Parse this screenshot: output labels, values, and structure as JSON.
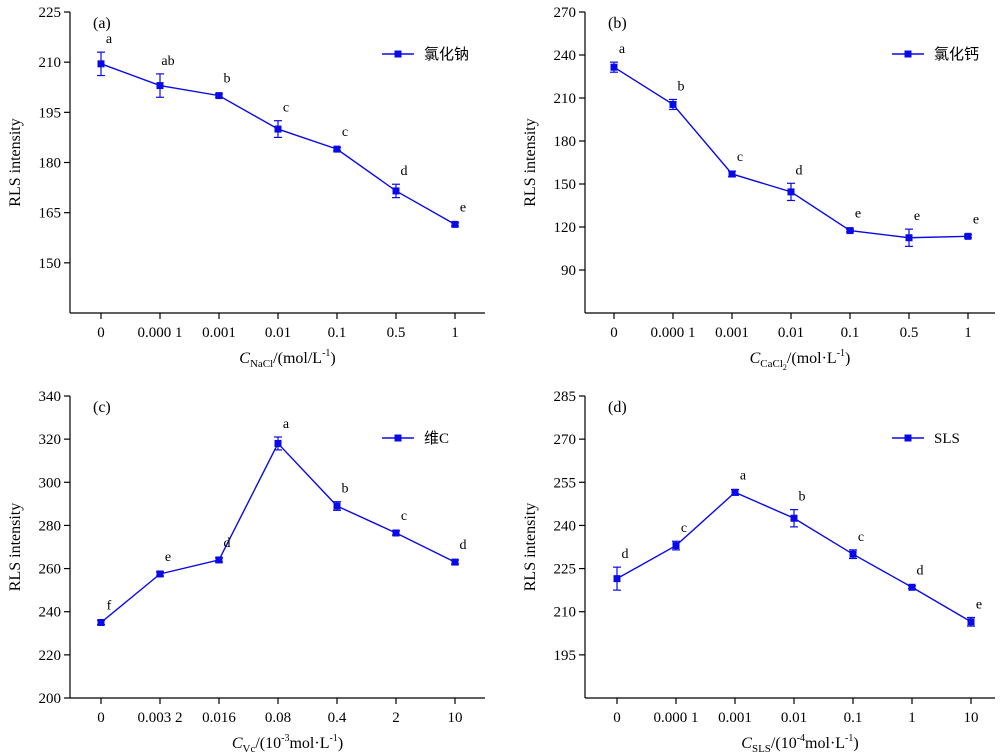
{
  "figure": {
    "accent_color": "#0a0ae6"
  },
  "chart_data": [
    {
      "type": "line",
      "panel_label": "(a)",
      "categories": [
        "0",
        "0.000 1",
        "0.001",
        "0.01",
        "0.1",
        "0.5",
        "1"
      ],
      "series": [
        {
          "name": "氯化钠",
          "values": [
            209.5,
            203,
            200,
            190,
            184,
            171.5,
            161.5
          ],
          "errors": [
            3.5,
            3.5,
            0.5,
            2.5,
            0.5,
            2,
            0.5
          ],
          "significance": [
            "a",
            "ab",
            "b",
            "c",
            "c",
            "d",
            "e"
          ]
        }
      ],
      "ylabel": "RLS intensity",
      "xlabel_var": "C",
      "xlabel_sub": "NaCl",
      "xlabel_sub2": "",
      "xlabel_unit": "/(mol/L",
      "xlabel_sup": "-1",
      "xlabel_end": ")",
      "ylim": [
        135,
        225
      ],
      "yticks": [
        150,
        165,
        180,
        195,
        210,
        225
      ],
      "legend_position": "top-right"
    },
    {
      "type": "line",
      "panel_label": "(b)",
      "categories": [
        "0",
        "0.000 1",
        "0.001",
        "0.01",
        "0.1",
        "0.5",
        "1"
      ],
      "series": [
        {
          "name": "氯化钙",
          "values": [
            231.5,
            205.5,
            157,
            144.5,
            117.5,
            112.5,
            113.5
          ],
          "errors": [
            3.5,
            3.5,
            2,
            6,
            1,
            6,
            1
          ],
          "significance": [
            "a",
            "b",
            "c",
            "d",
            "e",
            "e",
            "e"
          ]
        }
      ],
      "ylabel": "RLS intensity",
      "xlabel_var": "C",
      "xlabel_sub": "CaCl",
      "xlabel_sub2": "2",
      "xlabel_unit": "/(mol·L",
      "xlabel_sup": "-1",
      "xlabel_end": ")",
      "ylim": [
        60,
        270
      ],
      "yticks": [
        90,
        120,
        150,
        180,
        210,
        240,
        270
      ],
      "legend_position": "top-right"
    },
    {
      "type": "line",
      "panel_label": "(c)",
      "categories": [
        "0",
        "0.003 2",
        "0.016",
        "0.08",
        "0.4",
        "2",
        "10"
      ],
      "series": [
        {
          "name": "维C",
          "values": [
            235,
            257.5,
            264,
            318,
            289,
            276.5,
            263
          ],
          "errors": [
            1,
            1,
            1,
            3,
            2,
            1,
            1
          ],
          "significance": [
            "f",
            "e",
            "d",
            "a",
            "b",
            "c",
            "d"
          ]
        }
      ],
      "ylabel": "RLS intensity",
      "xlabel_var": "C",
      "xlabel_sub": "Vc",
      "xlabel_sub2": "",
      "xlabel_unit": "/(10",
      "xlabel_sup": "-3",
      "xlabel_unit2": "mol·L",
      "xlabel_sup2": "-1",
      "xlabel_end": ")",
      "ylim": [
        200,
        340
      ],
      "yticks": [
        200,
        220,
        240,
        260,
        280,
        300,
        320,
        340
      ],
      "legend_position": "top-right"
    },
    {
      "type": "line",
      "panel_label": "(d)",
      "categories": [
        "0",
        "0.000 1",
        "0.001",
        "0.01",
        "0.1",
        "1",
        "10"
      ],
      "series": [
        {
          "name": "SLS",
          "values": [
            221.5,
            233,
            251.5,
            242.5,
            230,
            218.5,
            206.5
          ],
          "errors": [
            4,
            1.5,
            1,
            3,
            1.5,
            0.5,
            1.5
          ],
          "significance": [
            "d",
            "c",
            "a",
            "b",
            "c",
            "d",
            "e"
          ]
        }
      ],
      "ylabel": "RLS intensity",
      "xlabel_var": "C",
      "xlabel_sub": "SLS",
      "xlabel_sub2": "",
      "xlabel_unit": "/(10",
      "xlabel_sup": "-4",
      "xlabel_unit2": "mol·L",
      "xlabel_sup2": "-1",
      "xlabel_end": ")",
      "ylim": [
        180,
        285
      ],
      "yticks": [
        195,
        210,
        225,
        240,
        255,
        270,
        285
      ],
      "legend_position": "top-right"
    }
  ]
}
